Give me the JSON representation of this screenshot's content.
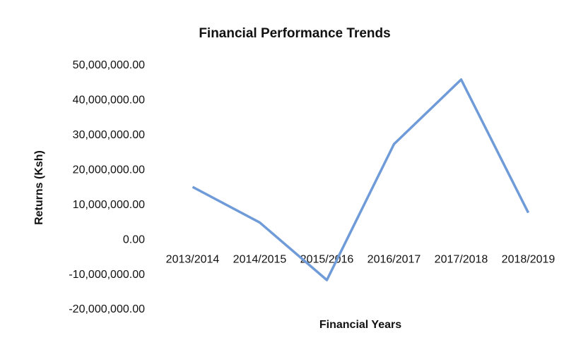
{
  "chart_data": {
    "type": "line",
    "title": "Financial Performance Trends",
    "x_label": "Financial Years",
    "y_label": "Returns (Ksh)",
    "categories": [
      "2013/2014",
      "2014/2015",
      "2015/2016",
      "2016/2017",
      "2017/2018",
      "2018/2019"
    ],
    "series": [
      {
        "name": "Returns (Ksh)",
        "color": "#6f9bd8",
        "values": [
          15200000,
          5000000,
          -11500000,
          27500000,
          46000000,
          7800000
        ]
      }
    ],
    "ylim": [
      -20000000,
      50000000
    ],
    "yticks": [
      {
        "value": 50000000,
        "label": "50,000,000.00"
      },
      {
        "value": 40000000,
        "label": "40,000,000.00"
      },
      {
        "value": 30000000,
        "label": "30,000,000.00"
      },
      {
        "value": 20000000,
        "label": "20,000,000.00"
      },
      {
        "value": 10000000,
        "label": "10,000,000.00"
      },
      {
        "value": 0,
        "label": "0.00"
      },
      {
        "value": -10000000,
        "label": "-10,000,000.00"
      },
      {
        "value": -20000000,
        "label": "-20,000,000.00"
      }
    ],
    "grid": false
  }
}
